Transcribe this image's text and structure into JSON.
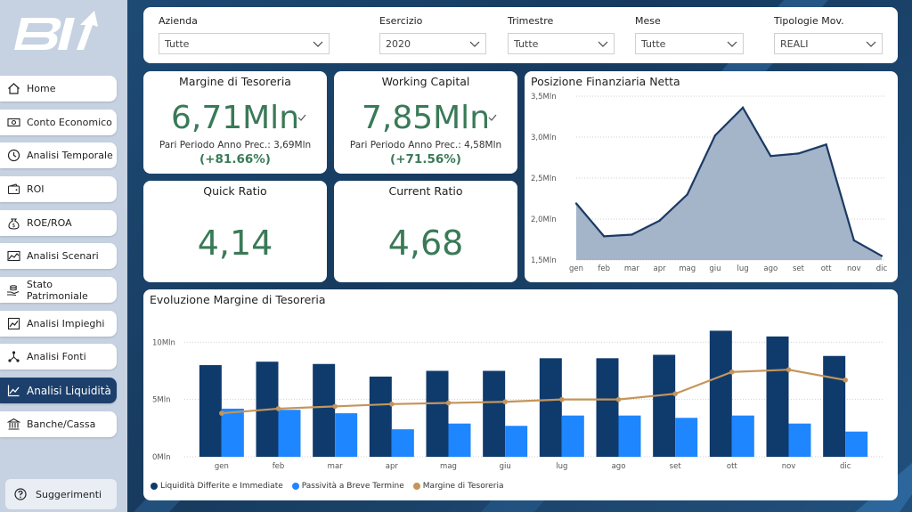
{
  "sidebar": {
    "items": [
      {
        "label": "Home",
        "icon": "home-icon"
      },
      {
        "label": "Conto Economico",
        "icon": "money-icon"
      },
      {
        "label": "Analisi Temporale",
        "icon": "clock-icon"
      },
      {
        "label": "ROI",
        "icon": "wallet-icon"
      },
      {
        "label": "ROE/ROA",
        "icon": "coin-bag-icon"
      },
      {
        "label": "Analisi Scenari",
        "icon": "landscape-chart-icon"
      },
      {
        "label": "Stato Patrimoniale",
        "icon": "hand-coins-icon"
      },
      {
        "label": "Analisi Impieghi",
        "icon": "trend-chart-icon"
      },
      {
        "label": "Analisi Fonti",
        "icon": "network-icon"
      },
      {
        "label": "Analisi Liquidità",
        "icon": "line-chart-icon",
        "active": true
      },
      {
        "label": "Banche/Cassa",
        "icon": "bank-icon"
      }
    ],
    "suggest_label": "Suggerimenti"
  },
  "filters": [
    {
      "label": "Azienda",
      "value": "Tutte"
    },
    {
      "label": "Esercizio",
      "value": "2020"
    },
    {
      "label": "Trimestre",
      "value": "Tutte"
    },
    {
      "label": "Mese",
      "value": "Tutte"
    },
    {
      "label": "Tipologie Mov.",
      "value": "REALI"
    }
  ],
  "kpis": {
    "margine": {
      "title": "Margine di Tesoreria",
      "value": "6,71Mln",
      "prev": "Pari Periodo Anno Prec.: 3,69Mln",
      "pct": "(+81.66%)"
    },
    "working": {
      "title": "Working Capital",
      "value": "7,85Mln",
      "prev": "Pari Periodo Anno Prec.: 4,58Mln",
      "pct": "(+71.56%)"
    },
    "quick": {
      "title": "Quick Ratio",
      "value": "4,14"
    },
    "current": {
      "title": "Current Ratio",
      "value": "4,68"
    }
  },
  "colors": {
    "kpi_green": "#3a7a57",
    "navy": "#0f3a6c",
    "blue": "#1e86ff",
    "gold": "#c4955a",
    "area_fill": "#9fb0c6",
    "area_line": "#1a3a63"
  },
  "chart_data": [
    {
      "type": "area",
      "title": "Posizione Finanziaria Netta",
      "categories": [
        "gen",
        "feb",
        "mar",
        "apr",
        "mag",
        "giu",
        "lug",
        "ago",
        "set",
        "ott",
        "nov",
        "dic"
      ],
      "values": [
        2.19,
        1.79,
        1.81,
        1.98,
        2.3,
        3.02,
        3.36,
        2.77,
        2.8,
        2.91,
        1.74,
        1.55
      ],
      "ylim": [
        1.5,
        3.5
      ],
      "yticks": [
        "1,5Mln",
        "2,0Mln",
        "2,5Mln",
        "3,0Mln",
        "3,5Mln"
      ]
    },
    {
      "type": "bar",
      "title": "Evoluzione Margine di Tesoreria",
      "categories": [
        "gen",
        "feb",
        "mar",
        "apr",
        "mag",
        "giu",
        "lug",
        "ago",
        "set",
        "ott",
        "nov",
        "dic"
      ],
      "ylim": [
        0,
        11.5
      ],
      "yticks": [
        "0Mln",
        "5Mln",
        "10Mln"
      ],
      "series": [
        {
          "name": "Liquidità Differite e Immediate",
          "type": "bar",
          "values": [
            8.0,
            8.3,
            8.1,
            7.0,
            7.5,
            7.5,
            8.6,
            8.6,
            8.9,
            11.0,
            10.5,
            8.8
          ]
        },
        {
          "name": "Passività a Breve Termine",
          "type": "bar",
          "values": [
            4.2,
            4.1,
            3.8,
            2.4,
            2.9,
            2.7,
            3.6,
            3.6,
            3.4,
            3.6,
            2.9,
            2.2
          ]
        },
        {
          "name": "Margine di Tesoreria",
          "type": "line",
          "values": [
            3.8,
            4.2,
            4.4,
            4.6,
            4.7,
            4.8,
            5.0,
            5.0,
            5.5,
            7.4,
            7.6,
            6.7
          ]
        }
      ]
    }
  ]
}
